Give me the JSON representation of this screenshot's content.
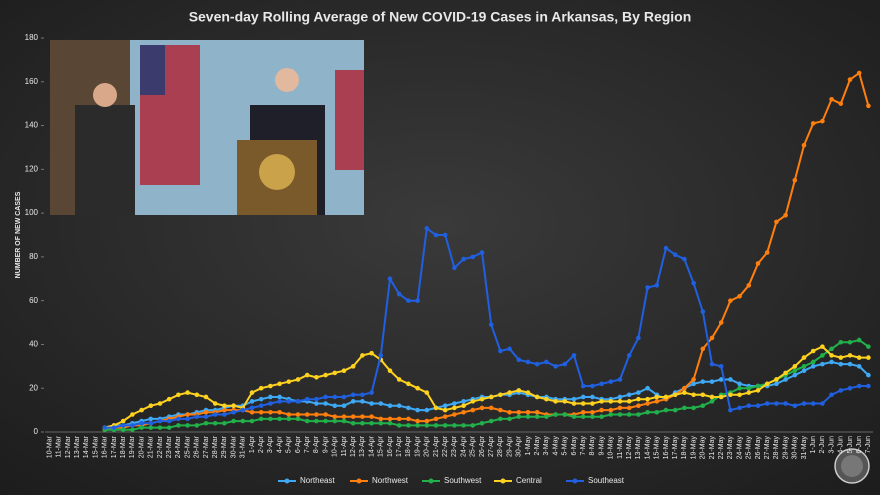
{
  "chart_data": {
    "type": "line",
    "title": "Seven-day Rolling Average of New COVID-19 Cases in Arkansas, By Region",
    "y_label": "NUMBER OF NEW CASES",
    "categories": [
      "10-Mar",
      "11-Mar",
      "12-Mar",
      "13-Mar",
      "14-Mar",
      "15-Mar",
      "16-Mar",
      "17-Mar",
      "18-Mar",
      "19-Mar",
      "20-Mar",
      "21-Mar",
      "22-Mar",
      "23-Mar",
      "24-Mar",
      "25-Mar",
      "26-Mar",
      "27-Mar",
      "28-Mar",
      "29-Mar",
      "30-Mar",
      "31-Mar",
      "1-Apr",
      "2-Apr",
      "3-Apr",
      "4-Apr",
      "5-Apr",
      "6-Apr",
      "7-Apr",
      "8-Apr",
      "9-Apr",
      "10-Apr",
      "11-Apr",
      "12-Apr",
      "13-Apr",
      "14-Apr",
      "15-Apr",
      "16-Apr",
      "17-Apr",
      "18-Apr",
      "19-Apr",
      "20-Apr",
      "21-Apr",
      "22-Apr",
      "23-Apr",
      "24-Apr",
      "25-Apr",
      "26-Apr",
      "27-Apr",
      "28-Apr",
      "29-Apr",
      "30-Apr",
      "1-May",
      "2-May",
      "3-May",
      "4-May",
      "5-May",
      "6-May",
      "7-May",
      "8-May",
      "9-May",
      "10-May",
      "11-May",
      "12-May",
      "13-May",
      "14-May",
      "15-May",
      "16-May",
      "17-May",
      "18-May",
      "19-May",
      "20-May",
      "21-May",
      "22-May",
      "23-May",
      "24-May",
      "25-May",
      "26-May",
      "27-May",
      "28-May",
      "29-May",
      "30-May",
      "31-May",
      "1-Jun",
      "2-Jun",
      "3-Jun",
      "4-Jun",
      "5-Jun",
      "6-Jun",
      "7-Jun"
    ],
    "series": [
      {
        "name": "Northeast",
        "color": "#3fa9f5",
        "values": [
          null,
          null,
          null,
          null,
          null,
          null,
          2,
          3,
          3,
          4,
          5,
          6,
          6,
          7,
          8,
          8,
          9,
          10,
          10,
          11,
          12,
          12,
          14,
          15,
          16,
          16,
          15,
          14,
          14,
          13,
          13,
          12,
          12,
          14,
          14,
          13,
          13,
          12,
          12,
          11,
          10,
          10,
          11,
          12,
          13,
          14,
          15,
          16,
          16,
          17,
          17,
          18,
          17,
          16,
          16,
          15,
          15,
          15,
          16,
          16,
          15,
          15,
          16,
          17,
          18,
          20,
          17,
          15,
          18,
          20,
          22,
          23,
          23,
          24,
          24,
          22,
          21,
          21,
          21,
          22,
          24,
          26,
          28,
          30,
          31,
          32,
          31,
          31,
          30,
          26
        ]
      },
      {
        "name": "Northwest",
        "color": "#ff7f0e",
        "values": [
          null,
          null,
          null,
          null,
          null,
          null,
          1,
          2,
          2,
          3,
          3,
          4,
          5,
          6,
          7,
          8,
          8,
          9,
          9,
          10,
          10,
          10,
          9,
          9,
          9,
          9,
          8,
          8,
          8,
          8,
          8,
          7,
          7,
          7,
          7,
          7,
          6,
          6,
          6,
          6,
          5,
          5,
          6,
          7,
          8,
          9,
          10,
          11,
          11,
          10,
          9,
          9,
          9,
          9,
          8,
          8,
          8,
          8,
          9,
          9,
          10,
          10,
          11,
          11,
          12,
          13,
          14,
          15,
          17,
          20,
          24,
          38,
          43,
          50,
          60,
          62,
          67,
          77,
          82,
          96,
          99,
          115,
          131,
          141,
          142,
          152,
          150,
          161,
          164,
          149
        ]
      },
      {
        "name": "Southwest",
        "color": "#22b04b",
        "values": [
          null,
          null,
          null,
          null,
          null,
          null,
          1,
          1,
          1,
          1,
          2,
          2,
          2,
          2,
          3,
          3,
          3,
          4,
          4,
          4,
          5,
          5,
          5,
          6,
          6,
          6,
          6,
          6,
          5,
          5,
          5,
          5,
          5,
          4,
          4,
          4,
          4,
          4,
          3,
          3,
          3,
          3,
          3,
          3,
          3,
          3,
          3,
          4,
          5,
          6,
          6,
          7,
          7,
          7,
          7,
          8,
          8,
          7,
          7,
          7,
          7,
          8,
          8,
          8,
          8,
          9,
          9,
          10,
          10,
          11,
          11,
          12,
          14,
          17,
          18,
          20,
          20,
          21,
          22,
          24,
          26,
          28,
          30,
          32,
          35,
          38,
          41,
          41,
          42,
          39
        ]
      },
      {
        "name": "Central",
        "color": "#ffd21f",
        "values": [
          null,
          null,
          null,
          null,
          null,
          null,
          2,
          3,
          5,
          8,
          10,
          12,
          13,
          15,
          17,
          18,
          17,
          16,
          13,
          12,
          12,
          11,
          18,
          20,
          21,
          22,
          23,
          24,
          26,
          25,
          26,
          27,
          28,
          30,
          35,
          36,
          33,
          28,
          24,
          22,
          20,
          18,
          11,
          10,
          11,
          12,
          14,
          15,
          16,
          17,
          18,
          19,
          18,
          16,
          15,
          14,
          14,
          13,
          13,
          13,
          14,
          14,
          14,
          14,
          15,
          15,
          16,
          16,
          17,
          18,
          17,
          17,
          16,
          16,
          17,
          17,
          18,
          19,
          22,
          24,
          27,
          30,
          34,
          37,
          39,
          35,
          34,
          35,
          34,
          34
        ]
      },
      {
        "name": "Southeast",
        "color": "#2060e0",
        "values": [
          null,
          null,
          null,
          null,
          null,
          null,
          2,
          2,
          3,
          3,
          4,
          4,
          5,
          5,
          6,
          6,
          7,
          7,
          8,
          8,
          9,
          10,
          11,
          12,
          13,
          14,
          14,
          14,
          15,
          15,
          16,
          16,
          16,
          17,
          17,
          18,
          35,
          70,
          63,
          60,
          60,
          93,
          90,
          90,
          75,
          79,
          80,
          82,
          49,
          37,
          38,
          33,
          32,
          31,
          32,
          30,
          31,
          35,
          21,
          21,
          22,
          23,
          24,
          35,
          43,
          66,
          67,
          84,
          81,
          79,
          68,
          55,
          31,
          30,
          10,
          11,
          12,
          12,
          13,
          13,
          13,
          12,
          13,
          13,
          13,
          17,
          19,
          20,
          21,
          21
        ]
      }
    ],
    "ylim": [
      0,
      180
    ],
    "yticks": [
      0,
      20,
      40,
      60,
      80,
      100,
      120,
      140,
      160,
      180
    ],
    "grid": false,
    "legend": "bottom"
  }
}
